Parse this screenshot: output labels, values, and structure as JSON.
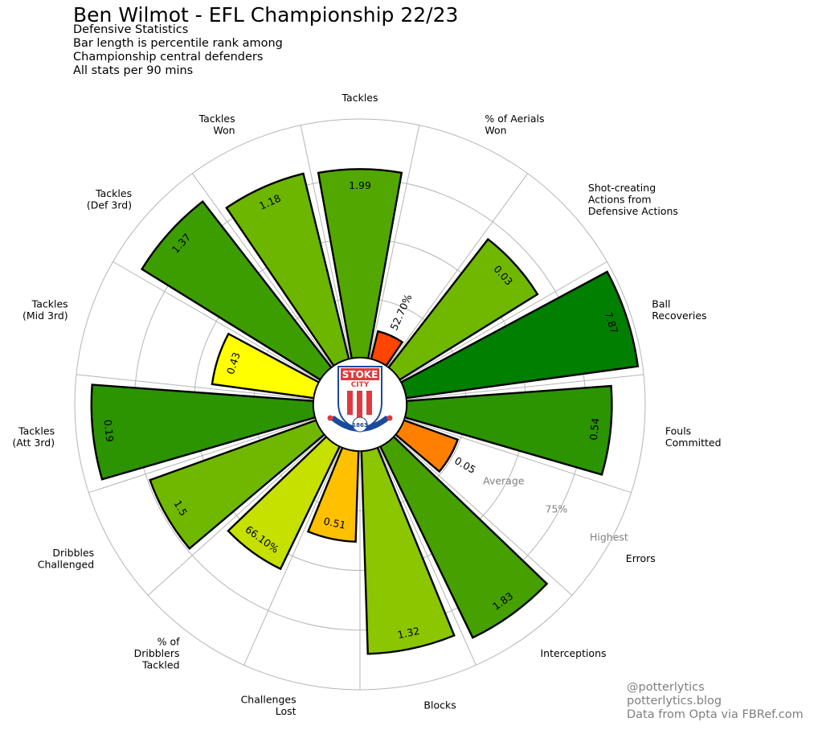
{
  "header": {
    "title": "Ben Wilmot - EFL Championship 22/23",
    "subtitle_lines": [
      "Defensive Statistics",
      "Bar length is percentile rank among",
      "Championship central defenders",
      "All stats per 90 mins"
    ]
  },
  "footer": {
    "lines": [
      "@potterlytics",
      "potterlytics.blog",
      "Data from Opta via FBRef.com"
    ]
  },
  "logo": {
    "text_top": "STOKE",
    "text_city": "CITY",
    "text_year": "1863",
    "text_motto": "THE POTTERS",
    "colors": {
      "red": "#e03a3e",
      "blue": "#1b4a9c",
      "white": "#ffffff"
    }
  },
  "chart_data": {
    "type": "radial-bar",
    "scale_label": "percentile rank",
    "rings": [
      {
        "label": "Average",
        "value": 50
      },
      {
        "label": "75%",
        "value": 75
      },
      {
        "label": "Highest",
        "value": 100
      }
    ],
    "bars": [
      {
        "label": "Tackles",
        "value_label": "1.99",
        "percentile": 79,
        "color": "#52a800"
      },
      {
        "label": "% of Aerials\nWon",
        "value_label": "52.70%",
        "percentile": 12,
        "color": "#ff4500"
      },
      {
        "label": "Shot-creating\nActions from\nDefensive Actions",
        "value_label": "0.03",
        "percentile": 68,
        "color": "#70b800"
      },
      {
        "label": "Ball\nRecoveries",
        "value_label": "7.87",
        "percentile": 98,
        "color": "#007f00"
      },
      {
        "label": "Fouls\nCommitted",
        "value_label": "0.54",
        "percentile": 86,
        "color": "#2b9400"
      },
      {
        "label": "Errors",
        "value_label": "0.05",
        "percentile": 24,
        "color": "#ff8000"
      },
      {
        "label": "Interceptions",
        "value_label": "1.83",
        "percentile": 89,
        "color": "#45a000"
      },
      {
        "label": "Blocks",
        "value_label": "1.32",
        "percentile": 85,
        "color": "#8bc600"
      },
      {
        "label": "Challenges\nLost",
        "value_label": "0.51",
        "percentile": 38,
        "color": "#ffc000"
      },
      {
        "label": "% of\nDribblers\nTackled",
        "value_label": "66.10%",
        "percentile": 57,
        "color": "#c6e000"
      },
      {
        "label": "Dribbles\nChallenged",
        "value_label": "1.5",
        "percentile": 74,
        "color": "#70b800"
      },
      {
        "label": "Tackles\n(Att 3rd)",
        "value_label": "0.19",
        "percentile": 93,
        "color": "#2b9400"
      },
      {
        "label": "Tackles\n(Mid 3rd)",
        "value_label": "0.43",
        "percentile": 43,
        "color": "#ffff00"
      },
      {
        "label": "Tackles\n(Def 3rd)",
        "value_label": "1.37",
        "percentile": 88,
        "color": "#3c9d00"
      },
      {
        "label": "Tackles\nWon",
        "value_label": "1.18",
        "percentile": 80,
        "color": "#6cb600"
      }
    ]
  }
}
